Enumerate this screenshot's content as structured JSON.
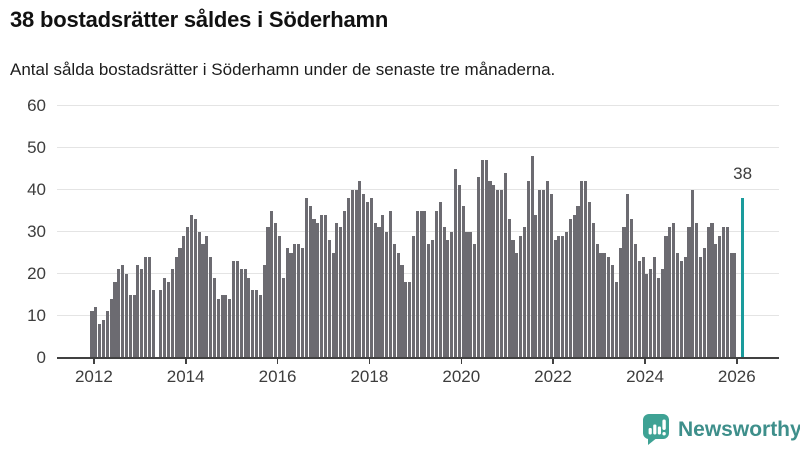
{
  "header": {
    "title": "38 bostadsrätter såldes i Söderhamn",
    "subtitle": "Antal sålda bostadsrätter i Söderhamn under de senaste tre månaderna."
  },
  "chart_data": {
    "type": "bar",
    "title": "38 bostadsrätter såldes i Söderhamn",
    "subtitle": "Antal sålda bostadsrätter i Söderhamn under de senaste tre månaderna.",
    "x_axis": {
      "tick_labels": [
        "2012",
        "2014",
        "2016",
        "2018",
        "2020",
        "2022",
        "2024",
        "2026"
      ]
    },
    "y_axis": {
      "ticks": [
        0,
        10,
        20,
        30,
        40,
        50,
        60
      ],
      "range": [
        0,
        60
      ]
    },
    "grid": true,
    "legend": "none",
    "series": [
      {
        "name": "salda-bostadsratter-rullande-3-man",
        "color": "#6C6B71",
        "values": [
          11,
          12,
          8,
          9,
          11,
          14,
          18,
          21,
          22,
          20,
          15,
          15,
          22,
          21,
          24,
          24,
          16,
          0,
          16,
          19,
          18,
          21,
          24,
          26,
          29,
          31,
          34,
          33,
          30,
          27,
          29,
          24,
          19,
          14,
          15,
          15,
          14,
          23,
          23,
          21,
          21,
          19,
          16,
          16,
          15,
          22,
          31,
          35,
          32,
          29,
          19,
          26,
          25,
          27,
          27,
          26,
          38,
          36,
          33,
          32,
          34,
          34,
          28,
          25,
          32,
          31,
          35,
          38,
          40,
          40,
          42,
          39,
          37,
          38,
          32,
          31,
          34,
          30,
          35,
          27,
          25,
          22,
          18,
          18,
          29,
          35,
          35,
          35,
          27,
          28,
          35,
          37,
          31,
          28,
          30,
          45,
          41,
          36,
          30,
          30,
          27,
          43,
          47,
          47,
          42,
          41,
          40,
          40,
          44,
          33,
          28,
          25,
          29,
          31,
          42,
          48,
          34,
          40,
          40,
          42,
          39,
          28,
          29,
          29,
          30,
          33,
          34,
          36,
          42,
          42,
          37,
          32,
          27,
          25,
          25,
          24,
          22,
          18,
          26,
          31,
          39,
          33,
          27,
          23,
          24,
          20,
          21,
          24,
          19,
          21,
          29,
          31,
          32,
          25,
          23,
          24,
          31,
          40,
          32,
          24,
          26,
          31,
          32,
          27,
          29,
          31,
          31,
          25,
          25
        ]
      }
    ],
    "highlight_bar": {
      "value": 38,
      "label": "38",
      "color": "#1A9B9C"
    }
  },
  "watermark": {
    "label": "Newsworthy"
  },
  "colors": {
    "background": "#FFFFFF",
    "bar": "#6C6B71",
    "highlight": "#1A9B9C",
    "grid": "#E4E4E4",
    "axis": "#414141",
    "axis_text": "#3D3D3D",
    "title_text": "#111111",
    "logo_icon": "#3EA294",
    "logo_text": "#3E8F8B"
  }
}
